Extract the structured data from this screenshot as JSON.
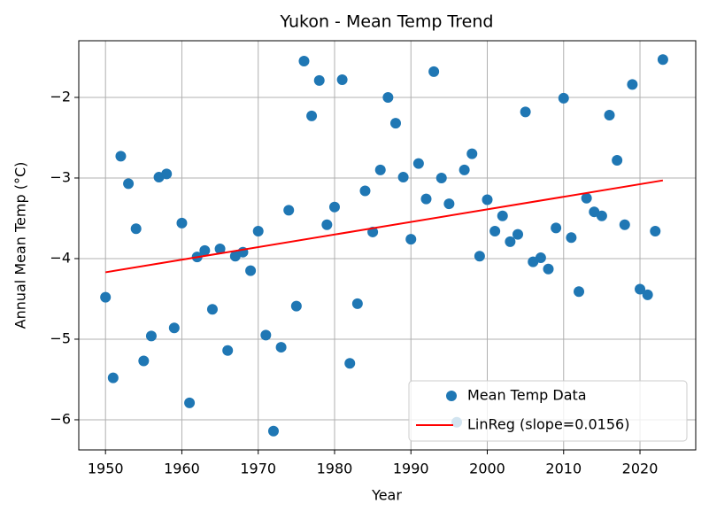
{
  "chart_data": {
    "type": "scatter",
    "title": "Yukon - Mean Temp Trend",
    "x_label": "Year",
    "y_label": "Annual Mean Temp (°C)",
    "xlim": [
      1946.5,
      2027.3
    ],
    "ylim": [
      -6.374,
      -1.297
    ],
    "xticks": [
      1950,
      1960,
      1970,
      1980,
      1990,
      2000,
      2010,
      2020
    ],
    "yticks": [
      {
        "value": -6,
        "label": "−6"
      },
      {
        "value": -5,
        "label": "−5"
      },
      {
        "value": -4,
        "label": "−4"
      },
      {
        "value": -3,
        "label": "−3"
      },
      {
        "value": -2,
        "label": "−2"
      }
    ],
    "grid": true,
    "legend": "lower right",
    "series": [
      {
        "name": "Mean Temp Data",
        "type": "scatter",
        "color": "#1f77b4",
        "x": [
          1950,
          1951,
          1952,
          1953,
          1954,
          1955,
          1956,
          1957,
          1958,
          1959,
          1960,
          1961,
          1962,
          1963,
          1964,
          1965,
          1966,
          1967,
          1968,
          1969,
          1970,
          1971,
          1972,
          1973,
          1974,
          1975,
          1976,
          1977,
          1978,
          1979,
          1980,
          1981,
          1982,
          1983,
          1984,
          1985,
          1986,
          1987,
          1988,
          1989,
          1990,
          1991,
          1992,
          1993,
          1994,
          1995,
          1996,
          1997,
          1998,
          1999,
          2000,
          2001,
          2002,
          2003,
          2004,
          2005,
          2006,
          2007,
          2008,
          2009,
          2010,
          2011,
          2012,
          2013,
          2014,
          2015,
          2016,
          2017,
          2018,
          2019,
          2020,
          2021,
          2022,
          2023
        ],
        "values": [
          -4.48,
          -5.48,
          -2.73,
          -3.07,
          -3.63,
          -5.27,
          -4.96,
          -2.99,
          -2.95,
          -4.86,
          -3.56,
          -5.79,
          -3.98,
          -3.9,
          -4.63,
          -3.88,
          -5.14,
          -3.97,
          -3.92,
          -4.15,
          -3.66,
          -4.95,
          -6.14,
          -5.1,
          -3.4,
          -4.59,
          -1.55,
          -2.23,
          -1.79,
          -3.58,
          -3.36,
          -1.78,
          -5.3,
          -4.56,
          -3.16,
          -3.67,
          -2.9,
          -2.0,
          -2.32,
          -2.99,
          -3.76,
          -2.82,
          -3.26,
          -1.68,
          -3.0,
          -3.32,
          -6.03,
          -2.9,
          -2.7,
          -3.97,
          -3.27,
          -3.66,
          -3.47,
          -3.79,
          -3.7,
          -2.18,
          -4.04,
          -3.99,
          -4.13,
          -3.62,
          -2.01,
          -3.74,
          -4.41,
          -3.25,
          -3.42,
          -3.47,
          -2.22,
          -2.78,
          -3.58,
          -1.84,
          -4.38,
          -4.45,
          -3.66,
          -1.53
        ]
      },
      {
        "name": "LinReg (slope=0.0156)",
        "type": "line",
        "color": "#ff0000",
        "x": [
          1950,
          2023
        ],
        "values": [
          -4.17,
          -3.03
        ]
      }
    ]
  }
}
